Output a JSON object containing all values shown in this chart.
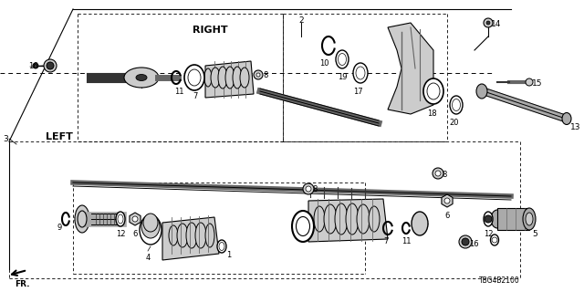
{
  "bg_color": "#ffffff",
  "diagram_code": "TBG4B2100",
  "right_label": "RIGHT",
  "left_label": "LEFT",
  "fr_label": "FR.",
  "gray_dark": "#333333",
  "gray_mid": "#666666",
  "gray_light": "#aaaaaa",
  "gray_lighter": "#cccccc",
  "black": "#000000",
  "white": "#ffffff"
}
